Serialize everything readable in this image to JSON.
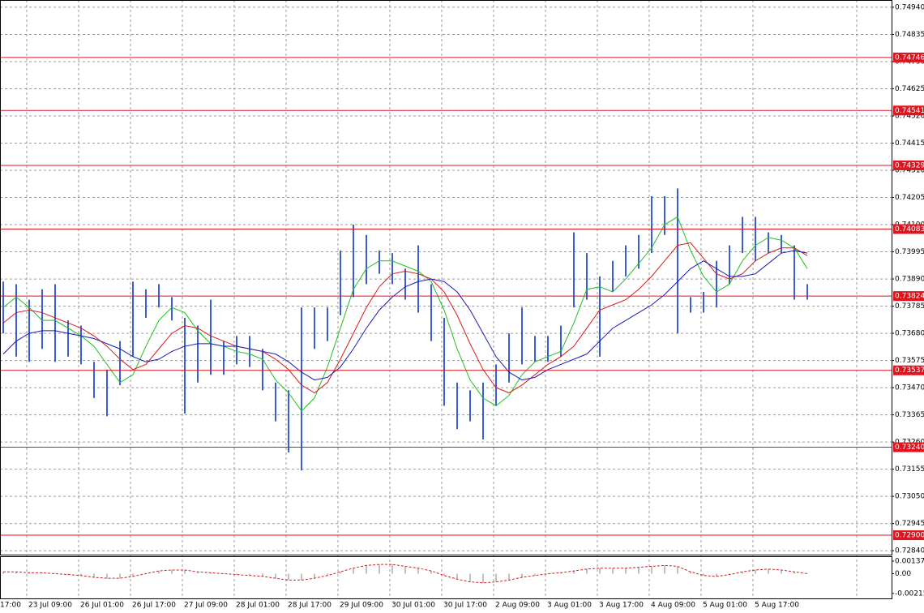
{
  "chart_data": {
    "type": "ohlc",
    "x_labels": [
      "17:00",
      "23 Jul 09:00",
      "26 Jul 01:00",
      "26 Jul 17:00",
      "27 Jul 09:00",
      "28 Jul 01:00",
      "28 Jul 17:00",
      "29 Jul 09:00",
      "30 Jul 01:00",
      "30 Jul 17:00",
      "2 Aug 09:00",
      "3 Aug 01:00",
      "3 Aug 17:00",
      "4 Aug 09:00",
      "5 Aug 01:00",
      "5 Aug 17:00"
    ],
    "ylim": [
      0.72825,
      0.74968
    ],
    "yticks": [
      {
        "value": 0.7494,
        "label": "0.74940"
      },
      0.74835,
      {
        "value": 0.7473,
        "label": "0.74730"
      },
      0.74625,
      {
        "value": 0.7452,
        "label": "0.74520"
      },
      0.74415,
      {
        "value": 0.7431,
        "label": "0.74310"
      },
      0.74205,
      {
        "value": 0.741,
        "label": "0.74100"
      },
      0.73995,
      {
        "value": 0.7389,
        "label": "0.73890"
      },
      0.73785,
      {
        "value": 0.7368,
        "label": "0.73680"
      },
      0.73575,
      {
        "value": 0.7347,
        "label": "0.73470"
      },
      0.73365,
      {
        "value": 0.7326,
        "label": "0.73260"
      },
      0.73155,
      {
        "value": 0.7305,
        "label": "0.73050"
      },
      0.72945,
      {
        "value": 0.7284,
        "label": "0.72840"
      }
    ],
    "grid": true,
    "color": "#3a5fc8",
    "levels_color": "#e0141e",
    "levels": [
      0.74746,
      0.74541,
      0.74329,
      0.74083,
      0.73824,
      0.73537,
      {
        "value": 0.7324,
        "label": "0.73240"
      },
      {
        "value": 0.729,
        "label": "0.72900"
      }
    ],
    "high": [
      0.7388,
      0.7387,
      0.7381,
      0.7385,
      0.7387,
      0.7373,
      0.7371,
      0.7357,
      0.7354,
      0.7365,
      0.7388,
      0.7385,
      0.7387,
      0.7382,
      0.7374,
      0.7371,
      0.7381,
      0.7365,
      0.7367,
      0.7367,
      0.7362,
      0.7349,
      0.7346,
      0.7378,
      0.7378,
      0.7378,
      0.74,
      0.741,
      0.7406,
      0.74,
      0.7399,
      0.7393,
      0.7402,
      0.7387,
      0.7374,
      0.7349,
      0.7346,
      0.7349,
      0.7356,
      0.7368,
      0.7378,
      0.7367,
      0.7367,
      0.7371,
      0.7407,
      0.7399,
      0.739,
      0.7396,
      0.7402,
      0.7406,
      0.7421,
      0.7421,
      0.7424,
      0.7382,
      0.7384,
      0.7396,
      0.7402,
      0.7413,
      0.7413,
      0.7407,
      0.7406,
      0.7402,
      0.7387
    ],
    "low": [
      0.7368,
      0.7359,
      0.7357,
      0.7362,
      0.7357,
      0.7359,
      0.7356,
      0.7343,
      0.7336,
      0.7348,
      0.7359,
      0.7374,
      0.7378,
      0.7373,
      0.7337,
      0.7349,
      0.7352,
      0.7352,
      0.7356,
      0.7355,
      0.7346,
      0.7334,
      0.7322,
      0.7315,
      0.7362,
      0.7365,
      0.7375,
      0.7382,
      0.7387,
      0.7391,
      0.7387,
      0.7381,
      0.7376,
      0.7365,
      0.734,
      0.7331,
      0.7334,
      0.7327,
      0.734,
      0.7349,
      0.7356,
      0.7357,
      0.7357,
      0.7359,
      0.7378,
      0.7381,
      0.7359,
      0.7384,
      0.739,
      0.7393,
      0.7399,
      0.7406,
      0.7368,
      0.7376,
      0.7376,
      0.7378,
      0.7387,
      0.7399,
      0.7396,
      0.7399,
      0.7399,
      0.7381,
      0.7381
    ],
    "series": [
      {
        "color": "#1fbf1f",
        "values": [
          0.7378,
          0.7382,
          0.7378,
          0.7373,
          0.7373,
          0.737,
          0.7367,
          0.7363,
          0.7356,
          0.7349,
          0.7352,
          0.7363,
          0.7373,
          0.7378,
          0.7376,
          0.7369,
          0.7364,
          0.7363,
          0.7361,
          0.736,
          0.7358,
          0.735,
          0.7345,
          0.7338,
          0.7343,
          0.7355,
          0.737,
          0.7385,
          0.7393,
          0.7396,
          0.7396,
          0.7394,
          0.7392,
          0.7388,
          0.7377,
          0.7362,
          0.735,
          0.7343,
          0.734,
          0.7344,
          0.7352,
          0.7357,
          0.7359,
          0.7361,
          0.7372,
          0.7385,
          0.7386,
          0.7384,
          0.7389,
          0.7395,
          0.7401,
          0.741,
          0.7413,
          0.74,
          0.739,
          0.7384,
          0.7387,
          0.7396,
          0.7402,
          0.7405,
          0.7404,
          0.7401,
          0.7393
        ]
      },
      {
        "color": "#d81818",
        "values": [
          0.7372,
          0.7376,
          0.7377,
          0.7376,
          0.7374,
          0.7372,
          0.737,
          0.7367,
          0.7363,
          0.7358,
          0.7354,
          0.7356,
          0.7362,
          0.7368,
          0.7371,
          0.737,
          0.7367,
          0.7365,
          0.7363,
          0.7362,
          0.7361,
          0.7358,
          0.7354,
          0.7348,
          0.7345,
          0.7349,
          0.7358,
          0.7368,
          0.7378,
          0.7386,
          0.7391,
          0.7392,
          0.7391,
          0.7389,
          0.7384,
          0.7375,
          0.7364,
          0.7354,
          0.7347,
          0.7345,
          0.7348,
          0.7352,
          0.7356,
          0.7359,
          0.7363,
          0.737,
          0.7377,
          0.7379,
          0.7381,
          0.7385,
          0.739,
          0.7396,
          0.7402,
          0.7403,
          0.7397,
          0.7391,
          0.7389,
          0.7391,
          0.7396,
          0.7399,
          0.7401,
          0.7401,
          0.7398
        ]
      },
      {
        "color": "#1a1ab8",
        "values": [
          0.736,
          0.7365,
          0.7368,
          0.7369,
          0.7369,
          0.7368,
          0.7367,
          0.7366,
          0.7364,
          0.7362,
          0.7359,
          0.7357,
          0.7358,
          0.7361,
          0.7363,
          0.7364,
          0.7364,
          0.7363,
          0.7363,
          0.7362,
          0.7361,
          0.736,
          0.7357,
          0.7353,
          0.735,
          0.7351,
          0.7355,
          0.7362,
          0.737,
          0.7377,
          0.7382,
          0.7386,
          0.7388,
          0.7389,
          0.7388,
          0.7384,
          0.7377,
          0.7368,
          0.7359,
          0.7353,
          0.735,
          0.7351,
          0.7354,
          0.7356,
          0.7358,
          0.736,
          0.7365,
          0.737,
          0.7373,
          0.7376,
          0.7379,
          0.7383,
          0.7388,
          0.7393,
          0.7396,
          0.7393,
          0.739,
          0.739,
          0.7391,
          0.7395,
          0.7399,
          0.74,
          0.7399
        ]
      }
    ],
    "oscillator": {
      "ylim": [
        -0.0027,
        0.0019
      ],
      "yticks": [
        0.00137,
        {
          "value": 0,
          "label": "0.00"
        },
        -0.00215
      ],
      "color": "#c0c0c0",
      "line_color": "#d02020",
      "values": [
        0.0002,
        0.0002,
        0.0001,
        0.0001,
        0.0,
        -0.0001,
        -0.0002,
        -0.0004,
        -0.0005,
        -0.0005,
        -0.0003,
        0.0,
        0.0003,
        0.0004,
        0.0004,
        0.0002,
        0.0001,
        0.0,
        -0.0001,
        -0.0002,
        -0.0003,
        -0.0005,
        -0.0007,
        -0.0007,
        -0.0005,
        -0.0002,
        0.0002,
        0.0006,
        0.0009,
        0.001,
        0.001,
        0.0008,
        0.0006,
        0.0003,
        -0.0002,
        -0.0006,
        -0.0009,
        -0.001,
        -0.0009,
        -0.0007,
        -0.0004,
        -0.0002,
        0.0,
        0.0001,
        0.0003,
        0.0005,
        0.0006,
        0.0006,
        0.0006,
        0.0007,
        0.0008,
        0.0009,
        0.0008,
        0.0002,
        -0.0002,
        -0.0003,
        -0.0001,
        0.0002,
        0.0004,
        0.0005,
        0.0004,
        0.0002,
        0.0
      ]
    }
  }
}
